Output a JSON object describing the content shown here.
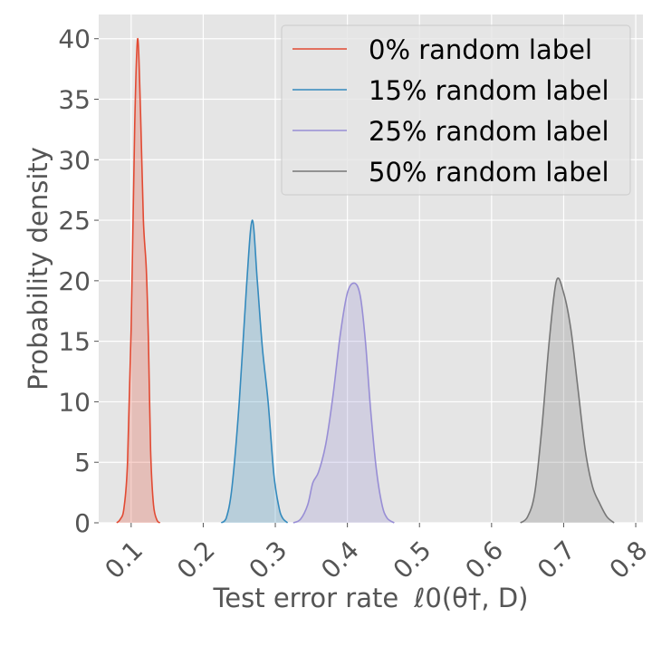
{
  "chart_data": {
    "type": "area",
    "title": "",
    "xlabel": "Test error rate",
    "xlabel_math": "ℓ0(θ†, D)",
    "ylabel": "Probability density",
    "xlim": [
      0.055,
      0.81
    ],
    "ylim": [
      0,
      42
    ],
    "xticks": [
      0.1,
      0.2,
      0.3,
      0.4,
      0.5,
      0.6,
      0.7,
      0.8
    ],
    "xtick_labels": [
      "0.1",
      "0.2",
      "0.3",
      "0.4",
      "0.5",
      "0.6",
      "0.7",
      "0.8"
    ],
    "yticks": [
      0,
      5,
      10,
      15,
      20,
      25,
      30,
      35,
      40
    ],
    "ytick_labels": [
      "0",
      "5",
      "10",
      "15",
      "20",
      "25",
      "30",
      "35",
      "40"
    ],
    "grid": true,
    "legend_position": "top-right",
    "series": [
      {
        "name": "0% random label",
        "color": "#E24A33",
        "points": [
          [
            0.08,
            0
          ],
          [
            0.085,
            0.3
          ],
          [
            0.09,
            1.2
          ],
          [
            0.095,
            5
          ],
          [
            0.1,
            16
          ],
          [
            0.105,
            33
          ],
          [
            0.109,
            40
          ],
          [
            0.113,
            34
          ],
          [
            0.117,
            25
          ],
          [
            0.121,
            21
          ],
          [
            0.124,
            15
          ],
          [
            0.127,
            6
          ],
          [
            0.131,
            1.5
          ],
          [
            0.136,
            0.2
          ],
          [
            0.14,
            0
          ]
        ]
      },
      {
        "name": "15% random label",
        "color": "#348ABD",
        "points": [
          [
            0.225,
            0
          ],
          [
            0.232,
            0.4
          ],
          [
            0.24,
            3
          ],
          [
            0.25,
            10
          ],
          [
            0.26,
            19.5
          ],
          [
            0.268,
            25
          ],
          [
            0.275,
            20
          ],
          [
            0.282,
            14.5
          ],
          [
            0.29,
            10
          ],
          [
            0.298,
            4
          ],
          [
            0.305,
            1.3
          ],
          [
            0.31,
            0.4
          ],
          [
            0.317,
            0
          ]
        ]
      },
      {
        "name": "25% random label",
        "color": "#988ED5",
        "points": [
          [
            0.325,
            0
          ],
          [
            0.335,
            0.3
          ],
          [
            0.345,
            1.5
          ],
          [
            0.352,
            3.3
          ],
          [
            0.36,
            4.2
          ],
          [
            0.37,
            6.5
          ],
          [
            0.38,
            10.5
          ],
          [
            0.39,
            15.5
          ],
          [
            0.4,
            19
          ],
          [
            0.41,
            19.8
          ],
          [
            0.418,
            18.7
          ],
          [
            0.425,
            15
          ],
          [
            0.432,
            9.5
          ],
          [
            0.44,
            4.5
          ],
          [
            0.448,
            1.5
          ],
          [
            0.455,
            0.4
          ],
          [
            0.465,
            0
          ]
        ]
      },
      {
        "name": "50% random label",
        "color": "#777777",
        "points": [
          [
            0.64,
            0
          ],
          [
            0.65,
            0.5
          ],
          [
            0.66,
            2.5
          ],
          [
            0.67,
            8
          ],
          [
            0.68,
            15
          ],
          [
            0.69,
            20
          ],
          [
            0.7,
            19
          ],
          [
            0.71,
            16
          ],
          [
            0.72,
            11
          ],
          [
            0.73,
            6
          ],
          [
            0.74,
            3
          ],
          [
            0.75,
            1.6
          ],
          [
            0.76,
            0.5
          ],
          [
            0.77,
            0
          ]
        ]
      }
    ]
  }
}
